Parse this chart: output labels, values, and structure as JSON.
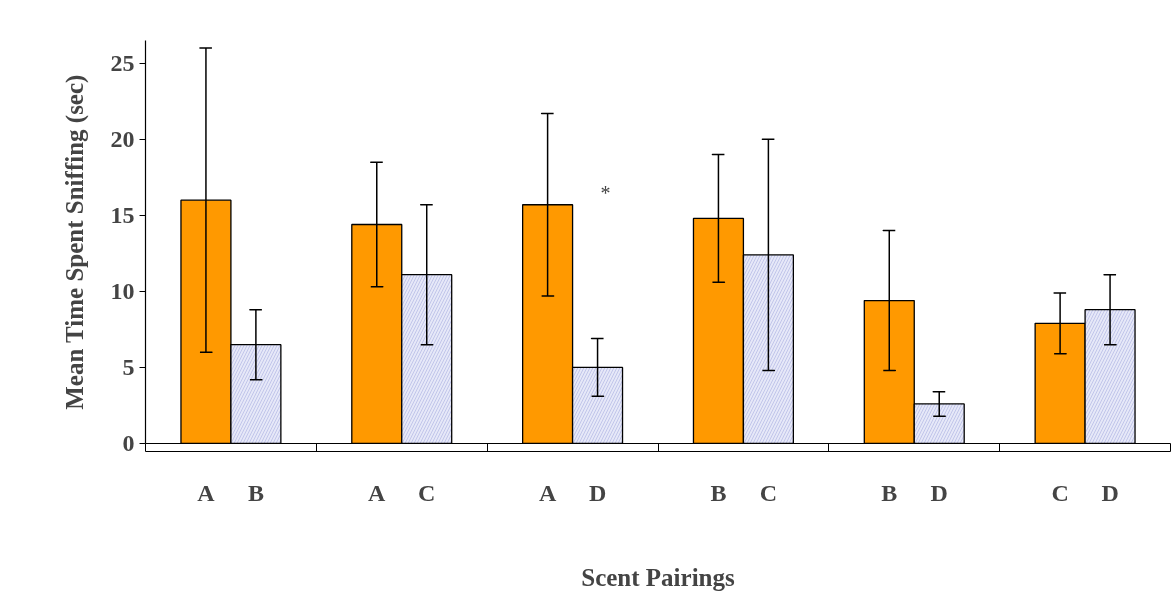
{
  "chart_data": {
    "type": "bar",
    "xlabel": "Scent Pairings",
    "ylabel": "Mean Time Spent Sniffing (sec)",
    "categories": [
      "A",
      "B",
      "A",
      "C",
      "A",
      "D",
      "B",
      "C",
      "B",
      "D",
      "C",
      "D"
    ],
    "values": [
      16.0,
      6.5,
      14.4,
      11.1,
      15.7,
      5.0,
      14.8,
      12.4,
      9.4,
      2.6,
      7.9,
      8.8
    ],
    "errors": [
      10.0,
      2.3,
      4.1,
      4.6,
      6.0,
      1.9,
      4.2,
      7.6,
      4.6,
      0.8,
      2.0,
      2.3
    ],
    "colors": [
      "#ff9900",
      "#e6e8f8",
      "#ff9900",
      "#e6e8f8",
      "#ff9900",
      "#e6e8f8",
      "#ff9900",
      "#e6e8f8",
      "#ff9900",
      "#e6e8f8",
      "#ff9900",
      "#e6e8f8"
    ],
    "ylim": [
      0,
      26.5
    ],
    "yticks": [
      0,
      5,
      10,
      15,
      20,
      25
    ],
    "grid": false,
    "annotations": [
      "*"
    ]
  }
}
